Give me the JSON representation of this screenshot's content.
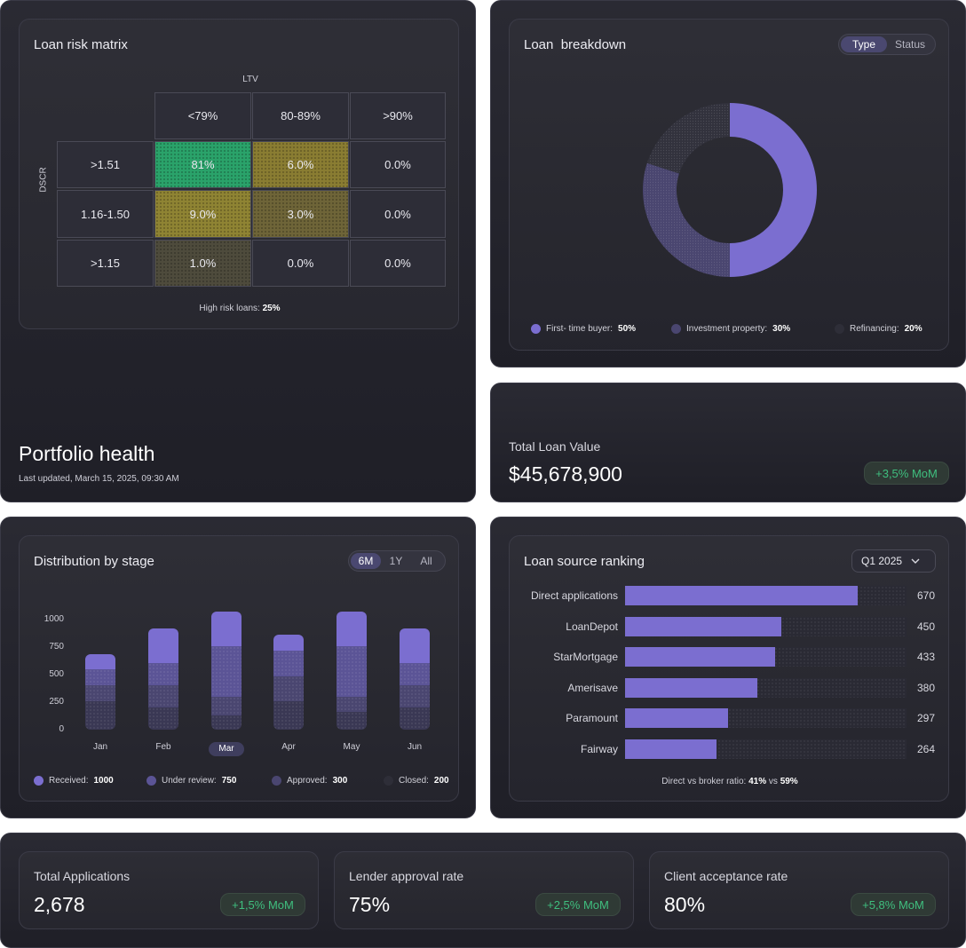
{
  "portfolio": {
    "title": "Portfolio health",
    "updated": "Last updated, March 15, 2025, 09:30 AM"
  },
  "risk_matrix": {
    "title": "Loan risk matrix",
    "col_axis": "LTV",
    "row_axis": "DSCR",
    "columns": [
      "<79%",
      "80-89%",
      ">90%"
    ],
    "rows": [
      {
        "label": ">1.51",
        "cells": [
          "81%",
          "6.0%",
          "0.0%"
        ]
      },
      {
        "label": "1.16-1.50",
        "cells": [
          "9.0%",
          "3.0%",
          "0.0%"
        ]
      },
      {
        "label": ">1.15",
        "cells": [
          "1.0%",
          "0.0%",
          "0.0%"
        ]
      }
    ],
    "footer_label": "High risk loans:",
    "footer_value": "25%",
    "colors": {
      "green": "#2aa36a",
      "olive": "#8a7d32",
      "olive_dark": "#6e6538",
      "olive_faint": "#4e4b3c"
    }
  },
  "breakdown": {
    "title": "Loan  breakdown",
    "tabs": [
      "Type",
      "Status"
    ],
    "active_tab": "Type",
    "chart_data": {
      "type": "pie",
      "variant": "donut",
      "slices": [
        {
          "name": "First- time buyer",
          "value": 50,
          "color": "#7b6ed0"
        },
        {
          "name": "Investment property",
          "value": 30,
          "color": "#4a4670"
        },
        {
          "name": "Refinancing",
          "value": 20,
          "color": "#32323d"
        }
      ]
    },
    "legend": [
      {
        "label": "First- time buyer:",
        "value": "50%",
        "color": "#7b6ed0"
      },
      {
        "label": "Investment property:",
        "value": "30%",
        "color": "#4a4670"
      },
      {
        "label": "Refinancing:",
        "value": "20%",
        "color": "#2e2e38"
      }
    ]
  },
  "total_loan": {
    "label": "Total Loan Value",
    "value": "$45,678,900",
    "badge": "+3,5% MoM"
  },
  "distribution": {
    "title": "Distribution by stage",
    "tabs": [
      "6M",
      "1Y",
      "All"
    ],
    "active_tab": "6M",
    "active_month": "Mar",
    "chart_data": {
      "type": "bar",
      "stacked": true,
      "categories": [
        "Jan",
        "Feb",
        "Mar",
        "Apr",
        "May",
        "Jun"
      ],
      "yticks": [
        "1000",
        "750",
        "500",
        "250",
        "0"
      ],
      "series": [
        {
          "name": "Closed",
          "color": "#3a3854",
          "values": [
            180,
            140,
            90,
            180,
            110,
            140
          ]
        },
        {
          "name": "Approved",
          "color": "#4a4670",
          "values": [
            100,
            140,
            120,
            160,
            100,
            140
          ]
        },
        {
          "name": "Under review",
          "color": "#5b5496",
          "values": [
            100,
            140,
            320,
            160,
            320,
            140
          ]
        },
        {
          "name": "Received",
          "color": "#7b6ed0",
          "values": [
            100,
            220,
            220,
            100,
            220,
            220
          ]
        }
      ]
    },
    "legend": [
      {
        "label": "Received:",
        "value": "1000",
        "color": "#7b6ed0"
      },
      {
        "label": "Under review:",
        "value": "750",
        "color": "#5b5496"
      },
      {
        "label": "Approved:",
        "value": "300",
        "color": "#4a4670"
      },
      {
        "label": "Closed:",
        "value": "200",
        "color": "#2e2e38"
      }
    ]
  },
  "ranking": {
    "title": "Loan source ranking",
    "period": "Q1 2025",
    "chart_data": {
      "type": "bar",
      "orientation": "horizontal",
      "categories": [
        "Direct applications",
        "LoanDepot",
        "StarMortgage",
        "Amerisave",
        "Paramount",
        "Fairway"
      ],
      "values": [
        670,
        450,
        433,
        380,
        297,
        264
      ]
    },
    "labels": [
      "670",
      "450",
      "433",
      "380",
      "297",
      "264"
    ],
    "footer_label": "Direct vs broker ratio:",
    "footer_a": "41%",
    "footer_vs": "vs",
    "footer_b": "59%"
  },
  "stats": [
    {
      "label": "Total Applications",
      "value": "2,678",
      "badge": "+1,5% MoM"
    },
    {
      "label": "Lender approval rate",
      "value": "75%",
      "badge": "+2,5% MoM"
    },
    {
      "label": "Client acceptance rate",
      "value": "80%",
      "badge": "+5,8% MoM"
    }
  ]
}
